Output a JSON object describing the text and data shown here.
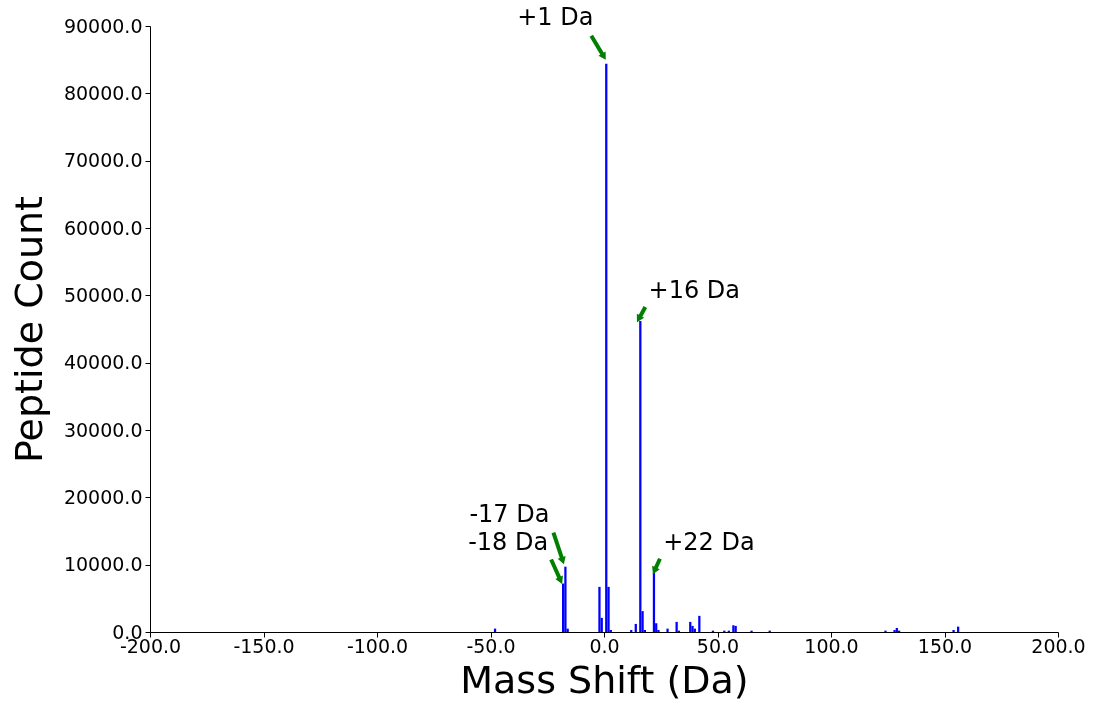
{
  "chart_data": {
    "type": "bar",
    "xlabel": "Mass Shift (Da)",
    "ylabel": "Peptide Count",
    "x": [
      -48,
      -18,
      -17,
      -16,
      -2,
      -1,
      1,
      2,
      3,
      12,
      14,
      16,
      17,
      18,
      22,
      23,
      24,
      28,
      32,
      33,
      38,
      39,
      40,
      42,
      48,
      53,
      55,
      57,
      58,
      65,
      73,
      124,
      128,
      129,
      130,
      154,
      156
    ],
    "series": [
      {
        "color": "#0000ff",
        "values": [
          500,
          7200,
          9700,
          500,
          6700,
          2100,
          84400,
          6700,
          300,
          300,
          1200,
          46200,
          3100,
          300,
          8800,
          1300,
          300,
          500,
          1500,
          200,
          1500,
          900,
          500,
          2400,
          200,
          200,
          200,
          1000,
          900,
          200,
          200,
          200,
          300,
          600,
          200,
          300,
          800
        ]
      }
    ],
    "xlim": [
      -200,
      200
    ],
    "xticks": [
      {
        "value": -200,
        "label": "-200.0"
      },
      {
        "value": -150,
        "label": "-150.0"
      },
      {
        "value": -100,
        "label": "-100.0"
      },
      {
        "value": -50,
        "label": "-50.0"
      },
      {
        "value": 0,
        "label": "0.0"
      },
      {
        "value": 50,
        "label": "50.0"
      },
      {
        "value": 100,
        "label": "100.0"
      },
      {
        "value": 150,
        "label": "150.0"
      },
      {
        "value": 200,
        "label": "200.0"
      }
    ],
    "ylim": [
      0,
      90000
    ],
    "yticks": [
      {
        "value": 0,
        "label": "0.0"
      },
      {
        "value": 10000,
        "label": "10000.0"
      },
      {
        "value": 20000,
        "label": "20000.0"
      },
      {
        "value": 30000,
        "label": "30000.0"
      },
      {
        "value": 40000,
        "label": "40000.0"
      },
      {
        "value": 50000,
        "label": "50000.0"
      },
      {
        "value": 60000,
        "label": "60000.0"
      },
      {
        "value": 70000,
        "label": "70000.0"
      },
      {
        "value": 80000,
        "label": "80000.0"
      },
      {
        "value": 90000,
        "label": "90000.0"
      }
    ],
    "annotations": [
      {
        "text": "+1 Da",
        "x": 1,
        "y": 84400
      },
      {
        "text": "+16 Da",
        "x": 16,
        "y": 46200
      },
      {
        "text": "+22 Da",
        "x": 22,
        "y": 8800
      },
      {
        "text": "-17 Da",
        "x": -17,
        "y": 9700
      },
      {
        "text": "-18 Da",
        "x": -18,
        "y": 7200
      }
    ],
    "grid": false,
    "legend": false
  }
}
